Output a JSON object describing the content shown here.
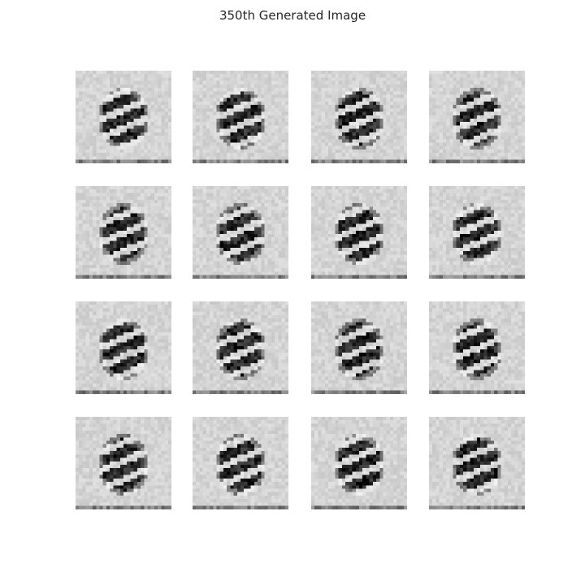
{
  "title": "350th Generated Image",
  "figure": {
    "rows": 4,
    "cols": 4,
    "colormap": "gray_r",
    "samples": [
      {
        "id": 1
      },
      {
        "id": 2
      },
      {
        "id": 3
      },
      {
        "id": 4
      },
      {
        "id": 5
      },
      {
        "id": 6
      },
      {
        "id": 7
      },
      {
        "id": 8
      },
      {
        "id": 9
      },
      {
        "id": 10
      },
      {
        "id": 11
      },
      {
        "id": 12
      },
      {
        "id": 13
      },
      {
        "id": 14
      },
      {
        "id": 15
      },
      {
        "id": 16
      }
    ]
  }
}
